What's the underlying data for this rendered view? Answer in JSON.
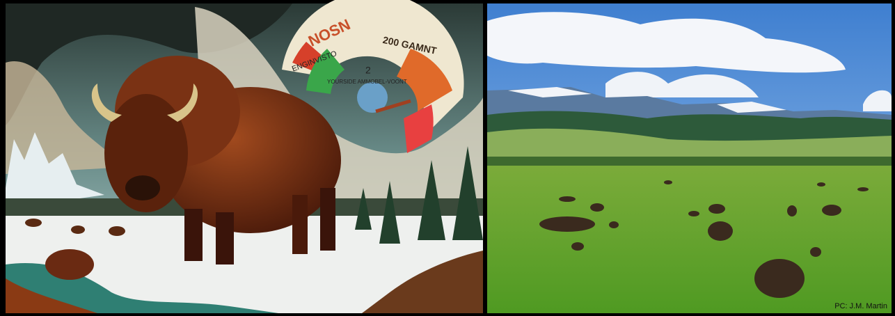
{
  "left_image": {
    "gauge_texts": [
      "NOSN",
      "ENGINVISTO",
      "200 GAMNT",
      "2",
      "YOURSIDE AMMOBEL-VOONT"
    ]
  },
  "right_image": {
    "credit": "PC: J.M. Martin"
  }
}
